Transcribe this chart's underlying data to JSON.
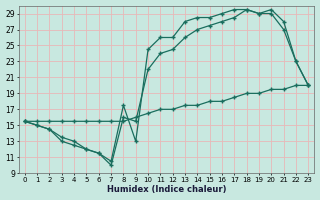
{
  "xlabel": "Humidex (Indice chaleur)",
  "bg_color": "#c8e8e0",
  "grid_color": "#e8b8b8",
  "line_color": "#1a6e5e",
  "xlim": [
    -0.5,
    23.5
  ],
  "ylim": [
    9,
    30
  ],
  "xticks": [
    0,
    1,
    2,
    3,
    4,
    5,
    6,
    7,
    8,
    9,
    10,
    11,
    12,
    13,
    14,
    15,
    16,
    17,
    18,
    19,
    20,
    21,
    22,
    23
  ],
  "yticks": [
    9,
    11,
    13,
    15,
    17,
    19,
    21,
    23,
    25,
    27,
    29
  ],
  "line1": {
    "x": [
      0,
      1,
      2,
      3,
      4,
      5,
      6,
      7,
      8,
      9,
      10,
      11,
      12,
      13,
      14,
      15,
      16,
      17,
      18,
      19,
      20,
      21,
      22,
      23
    ],
    "y": [
      15.5,
      15,
      14.5,
      13,
      12.5,
      12,
      11.5,
      10,
      16,
      15.5,
      22,
      24,
      24.5,
      26,
      27,
      27.5,
      28,
      28.5,
      29.5,
      29,
      29,
      27,
      23,
      20
    ]
  },
  "line2": {
    "x": [
      0,
      1,
      2,
      3,
      4,
      5,
      6,
      7,
      8,
      9,
      10,
      11,
      12,
      13,
      14,
      15,
      16,
      17,
      18,
      19,
      20,
      21,
      22,
      23
    ],
    "y": [
      15.5,
      15,
      14.5,
      13.5,
      13,
      12,
      11.5,
      10.5,
      17.5,
      13,
      24.5,
      26,
      26,
      28,
      28.5,
      28.5,
      29,
      29.5,
      29.5,
      29,
      29.5,
      28,
      23,
      20
    ]
  },
  "line3": {
    "x": [
      0,
      1,
      2,
      3,
      4,
      5,
      6,
      7,
      8,
      9,
      10,
      11,
      12,
      13,
      14,
      15,
      16,
      17,
      18,
      19,
      20,
      21,
      22,
      23
    ],
    "y": [
      15.5,
      15.5,
      15.5,
      15.5,
      15.5,
      15.5,
      15.5,
      15.5,
      15.5,
      16,
      16.5,
      17,
      17,
      17.5,
      17.5,
      18,
      18,
      18.5,
      19,
      19,
      19.5,
      19.5,
      20,
      20
    ]
  }
}
